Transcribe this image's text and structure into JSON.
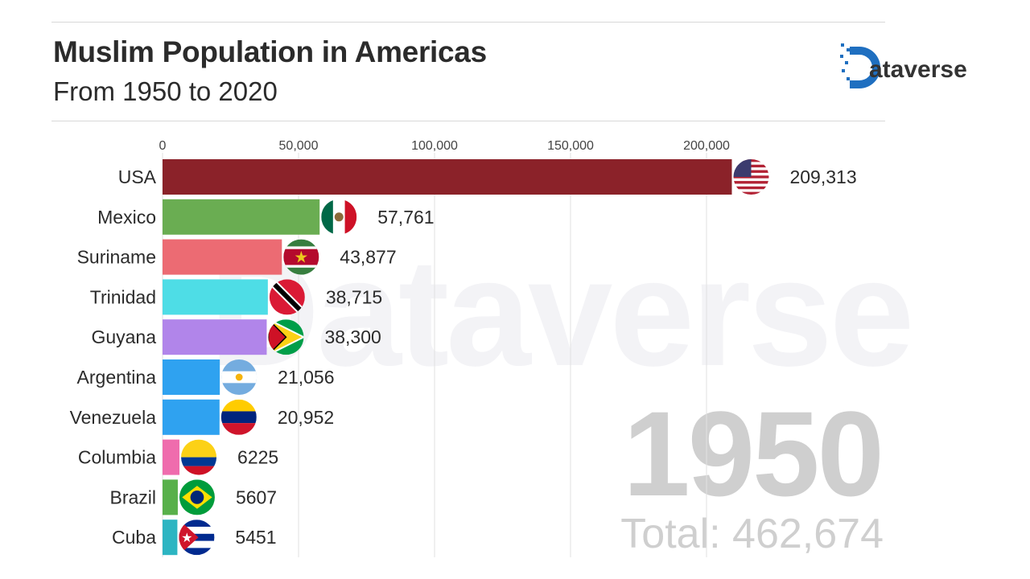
{
  "header": {
    "title": "Muslim Population in Americas",
    "subtitle": "From 1950 to 2020",
    "logo_text": "Dataverse",
    "logo_color": "#1f6fc0",
    "watermark": "Dataverse"
  },
  "chart_data": {
    "type": "bar",
    "orientation": "horizontal",
    "year": "1950",
    "total_label": "Total: 462,674",
    "xlim": [
      0,
      215000
    ],
    "grid": true,
    "ticks": [
      0,
      50000,
      100000,
      150000,
      200000
    ],
    "tick_labels": [
      "0",
      "50,000",
      "100,000",
      "150,000",
      "200,000"
    ],
    "categories": [
      "USA",
      "Mexico",
      "Suriname",
      "Trinidad",
      "Guyana",
      "Argentina",
      "Venezuela",
      "Columbia",
      "Brazil",
      "Cuba"
    ],
    "values": [
      209313,
      57761,
      43877,
      38715,
      38300,
      21056,
      20952,
      6225,
      5607,
      5451
    ],
    "value_labels": [
      "209,313",
      "57,761",
      "43,877",
      "38,715",
      "38,300",
      "21,056",
      "20,952",
      "6225",
      "5607",
      "5451"
    ],
    "colors": [
      "#8b2229",
      "#6aad52",
      "#ec6b73",
      "#4edde6",
      "#b185ea",
      "#2fa2f0",
      "#2fa2f0",
      "#ef6cad",
      "#58b04a",
      "#2db5c2"
    ],
    "flags": [
      "usa-flag-icon",
      "mexico-flag-icon",
      "suriname-flag-icon",
      "trinidad-flag-icon",
      "guyana-flag-icon",
      "argentina-flag-icon",
      "venezuela-flag-icon",
      "colombia-flag-icon",
      "brazil-flag-icon",
      "cuba-flag-icon"
    ]
  }
}
